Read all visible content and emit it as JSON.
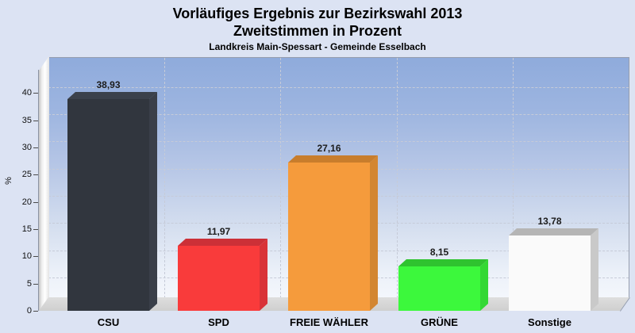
{
  "header": {
    "title": "Vorläufiges Ergebnis zur Bezirkswahl 2013",
    "subtitle": "Zweitstimmen in Prozent",
    "note": "Landkreis Main-Spessart - Gemeinde Esselbach"
  },
  "chart_data": {
    "type": "bar",
    "style": "3d-bars",
    "title": "Vorläufiges Ergebnis zur Bezirkswahl 2013",
    "subtitle": "Zweitstimmen in Prozent",
    "footnote": "Landkreis Main-Spessart - Gemeinde Esselbach",
    "categories": [
      "CSU",
      "SPD",
      "FREIE WÄHLER",
      "GRÜNE",
      "Sonstige"
    ],
    "values": [
      38.93,
      11.97,
      27.16,
      8.15,
      13.78
    ],
    "value_labels": [
      "38,93",
      "11,97",
      "27,16",
      "8,15",
      "13,78"
    ],
    "xlabel": "",
    "ylabel": "%",
    "yticks": [
      0,
      5,
      10,
      15,
      20,
      25,
      30,
      35,
      40
    ],
    "ylim": [
      0,
      44
    ],
    "grid": "horizontal dashed + vertical category separators",
    "legend_position": "none",
    "bar_colors": [
      {
        "front": "#31363e",
        "top": "#3b414b",
        "side": "#3a3f49"
      },
      {
        "front": "#f93b3b",
        "top": "#cc3037",
        "side": "#d93338"
      },
      {
        "front": "#f59b3c",
        "top": "#c87d2c",
        "side": "#d38631"
      },
      {
        "front": "#3cf83c",
        "top": "#2fc32f",
        "side": "#34d834"
      },
      {
        "front": "#fafafa",
        "top": "#b5b5b5",
        "side": "#c9c9c9"
      }
    ],
    "background_color": "#dce3f3",
    "wall_gradient_top": "#8fabdc",
    "wall_gradient_bottom": "#f4f7fc"
  }
}
